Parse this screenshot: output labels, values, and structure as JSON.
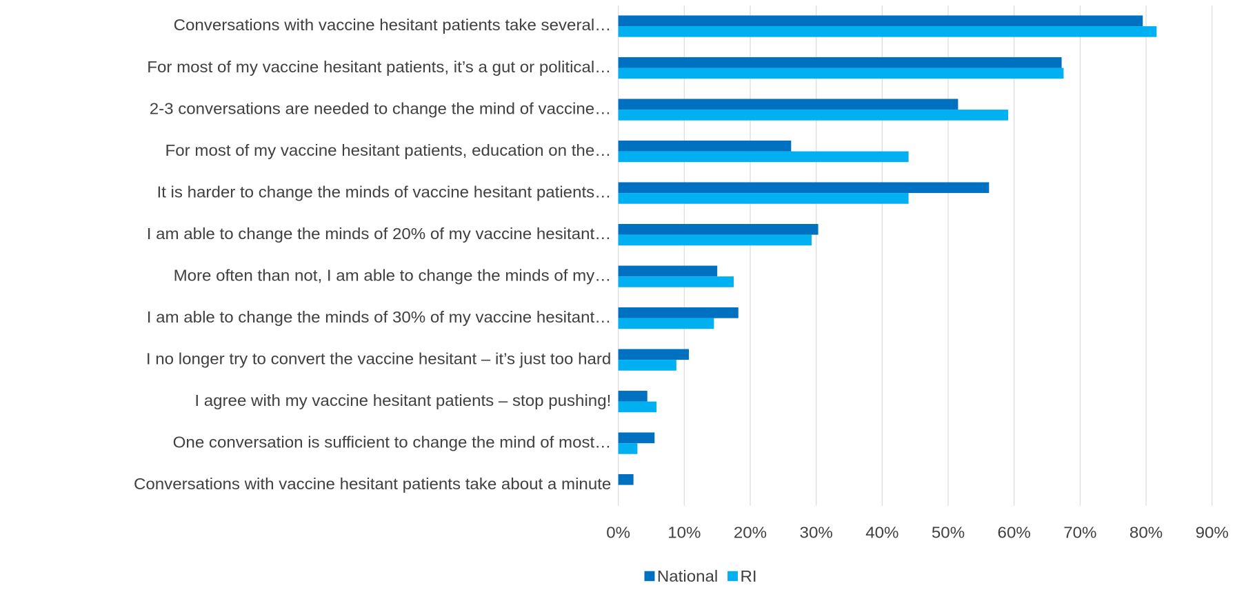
{
  "chart_data": {
    "type": "barh",
    "categories": [
      "Conversations with vaccine hesitant patients take several…",
      "For most of my vaccine hesitant patients, it’s a gut or political…",
      "2-3 conversations are needed to change the mind of vaccine…",
      "For most of my vaccine hesitant patients, education on the…",
      "It is harder to change the minds of vaccine hesitant patients…",
      "I am able to change the minds of 20% of my vaccine hesitant…",
      "More often than not, I am able to change the minds of my…",
      "I am able to change the minds of 30% of my vaccine hesitant…",
      "I no longer try to convert the vaccine hesitant – it’s just too hard",
      "I agree with my vaccine hesitant patients – stop pushing!",
      "One conversation is sufficient to change the mind of most…",
      "Conversations with vaccine hesitant patients take about a minute"
    ],
    "series": [
      {
        "name": "National",
        "color": "#0070c0",
        "values": [
          79.5,
          67.2,
          51.5,
          26.2,
          56.2,
          30.3,
          15,
          18.2,
          10.7,
          4.4,
          5.5,
          2.3
        ]
      },
      {
        "name": "RI",
        "color": "#00b0f0",
        "values": [
          81.6,
          67.5,
          59.1,
          44,
          44,
          29.3,
          17.5,
          14.5,
          8.8,
          5.8,
          2.9,
          null
        ]
      }
    ],
    "xlim": [
      0,
      90
    ],
    "xticks": [
      {
        "value": 0,
        "label": "0%"
      },
      {
        "value": 10,
        "label": "10%"
      },
      {
        "value": 20,
        "label": "20%"
      },
      {
        "value": 30,
        "label": "30%"
      },
      {
        "value": 40,
        "label": "40%"
      },
      {
        "value": 50,
        "label": "50%"
      },
      {
        "value": 60,
        "label": "60%"
      },
      {
        "value": 70,
        "label": "70%"
      },
      {
        "value": 80,
        "label": "80%"
      },
      {
        "value": 90,
        "label": "90%"
      }
    ],
    "grid": true,
    "legend": "bottom"
  }
}
